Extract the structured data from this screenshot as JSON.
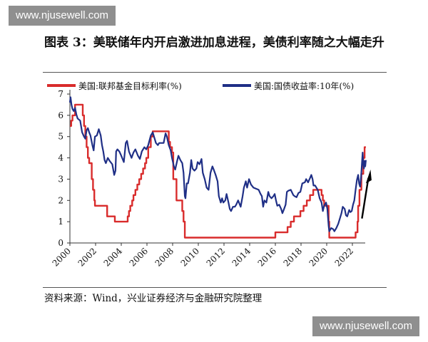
{
  "watermark": {
    "text": "www.njusewell.com"
  },
  "figure": {
    "title": "图表 3：美联储年内开启激进加息进程，美债利率随之大幅走升",
    "source": "资料来源：Wind，兴业证券经济与金融研究院整理"
  },
  "colors": {
    "fed_rate": "#d92c2c",
    "treasury_10y": "#1f2f86",
    "axis": "#333333",
    "arrow": "#000000"
  },
  "chart_data": {
    "type": "line",
    "title": "",
    "xlabel": "",
    "ylabel": "",
    "xlim": [
      2000,
      2023
    ],
    "ylim": [
      0,
      7
    ],
    "yticks": [
      0,
      1,
      2,
      3,
      4,
      5,
      6,
      7
    ],
    "xticks": [
      "2000",
      "2002",
      "2004",
      "2006",
      "2008",
      "2010",
      "2012",
      "2014",
      "2016",
      "2018",
      "2020",
      "2022"
    ],
    "grid": false,
    "legend_position": "top",
    "annotations": [
      {
        "type": "arrow",
        "direction": "up",
        "near_x": 2022.8
      }
    ],
    "series": [
      {
        "name": "美国:联邦基金目标利率(%)",
        "color": "#d92c2c",
        "style": "step",
        "points": [
          [
            2000.0,
            5.5
          ],
          [
            2000.1,
            5.75
          ],
          [
            2000.2,
            6.0
          ],
          [
            2000.4,
            6.5
          ],
          [
            2000.95,
            6.5
          ],
          [
            2001.0,
            6.0
          ],
          [
            2001.1,
            5.5
          ],
          [
            2001.2,
            5.0
          ],
          [
            2001.3,
            4.5
          ],
          [
            2001.4,
            4.0
          ],
          [
            2001.5,
            3.75
          ],
          [
            2001.7,
            3.0
          ],
          [
            2001.8,
            2.5
          ],
          [
            2001.9,
            2.0
          ],
          [
            2001.95,
            1.75
          ],
          [
            2002.85,
            1.75
          ],
          [
            2002.9,
            1.25
          ],
          [
            2003.45,
            1.25
          ],
          [
            2003.5,
            1.0
          ],
          [
            2004.45,
            1.0
          ],
          [
            2004.5,
            1.25
          ],
          [
            2004.6,
            1.5
          ],
          [
            2004.7,
            1.75
          ],
          [
            2004.85,
            2.0
          ],
          [
            2004.95,
            2.25
          ],
          [
            2005.1,
            2.5
          ],
          [
            2005.25,
            2.75
          ],
          [
            2005.4,
            3.0
          ],
          [
            2005.55,
            3.25
          ],
          [
            2005.7,
            3.5
          ],
          [
            2005.85,
            3.75
          ],
          [
            2005.95,
            4.0
          ],
          [
            2006.1,
            4.5
          ],
          [
            2006.3,
            5.0
          ],
          [
            2006.45,
            5.25
          ],
          [
            2007.65,
            5.25
          ],
          [
            2007.7,
            4.75
          ],
          [
            2007.8,
            4.5
          ],
          [
            2007.95,
            4.25
          ],
          [
            2008.05,
            3.0
          ],
          [
            2008.3,
            2.0
          ],
          [
            2008.75,
            1.5
          ],
          [
            2008.85,
            1.0
          ],
          [
            2008.95,
            0.25
          ],
          [
            2015.95,
            0.25
          ],
          [
            2016.0,
            0.5
          ],
          [
            2016.95,
            0.75
          ],
          [
            2017.2,
            1.0
          ],
          [
            2017.45,
            1.25
          ],
          [
            2017.95,
            1.5
          ],
          [
            2018.2,
            1.75
          ],
          [
            2018.45,
            2.0
          ],
          [
            2018.7,
            2.25
          ],
          [
            2018.95,
            2.5
          ],
          [
            2019.55,
            2.5
          ],
          [
            2019.6,
            2.25
          ],
          [
            2019.7,
            2.0
          ],
          [
            2019.8,
            1.75
          ],
          [
            2020.15,
            1.0
          ],
          [
            2020.2,
            0.25
          ],
          [
            2022.2,
            0.25
          ],
          [
            2022.25,
            0.5
          ],
          [
            2022.4,
            1.0
          ],
          [
            2022.45,
            1.75
          ],
          [
            2022.55,
            2.5
          ],
          [
            2022.7,
            3.25
          ],
          [
            2022.85,
            4.0
          ],
          [
            2022.95,
            4.5
          ],
          [
            2023.05,
            4.5
          ]
        ]
      },
      {
        "name": "美国:国债收益率:10年(%)",
        "color": "#1f2f86",
        "style": "line",
        "points": [
          [
            2000.0,
            6.6
          ],
          [
            2000.05,
            6.85
          ],
          [
            2000.12,
            6.5
          ],
          [
            2000.2,
            6.3
          ],
          [
            2000.3,
            6.2
          ],
          [
            2000.4,
            6.35
          ],
          [
            2000.5,
            6.05
          ],
          [
            2000.6,
            5.85
          ],
          [
            2000.7,
            5.8
          ],
          [
            2000.8,
            5.75
          ],
          [
            2000.95,
            5.2
          ],
          [
            2001.1,
            5.0
          ],
          [
            2001.2,
            4.9
          ],
          [
            2001.3,
            5.3
          ],
          [
            2001.4,
            5.4
          ],
          [
            2001.5,
            5.2
          ],
          [
            2001.6,
            5.05
          ],
          [
            2001.75,
            4.6
          ],
          [
            2001.85,
            4.35
          ],
          [
            2001.95,
            5.0
          ],
          [
            2002.1,
            5.05
          ],
          [
            2002.25,
            5.35
          ],
          [
            2002.4,
            5.05
          ],
          [
            2002.5,
            4.6
          ],
          [
            2002.6,
            4.3
          ],
          [
            2002.7,
            3.9
          ],
          [
            2002.8,
            3.75
          ],
          [
            2002.95,
            4.0
          ],
          [
            2003.1,
            3.85
          ],
          [
            2003.3,
            3.7
          ],
          [
            2003.45,
            3.2
          ],
          [
            2003.55,
            3.4
          ],
          [
            2003.6,
            4.3
          ],
          [
            2003.7,
            4.4
          ],
          [
            2003.85,
            4.3
          ],
          [
            2004.0,
            4.1
          ],
          [
            2004.2,
            3.8
          ],
          [
            2004.35,
            4.7
          ],
          [
            2004.45,
            4.8
          ],
          [
            2004.6,
            4.3
          ],
          [
            2004.8,
            4.0
          ],
          [
            2004.95,
            4.25
          ],
          [
            2005.1,
            4.4
          ],
          [
            2005.3,
            4.1
          ],
          [
            2005.45,
            3.95
          ],
          [
            2005.6,
            4.3
          ],
          [
            2005.8,
            4.5
          ],
          [
            2005.95,
            4.4
          ],
          [
            2006.1,
            4.6
          ],
          [
            2006.3,
            5.05
          ],
          [
            2006.45,
            5.2
          ],
          [
            2006.55,
            5.0
          ],
          [
            2006.7,
            4.7
          ],
          [
            2006.85,
            4.6
          ],
          [
            2006.95,
            4.7
          ],
          [
            2007.1,
            4.7
          ],
          [
            2007.3,
            4.7
          ],
          [
            2007.45,
            5.15
          ],
          [
            2007.55,
            5.0
          ],
          [
            2007.7,
            4.6
          ],
          [
            2007.85,
            4.35
          ],
          [
            2007.95,
            4.0
          ],
          [
            2008.1,
            3.6
          ],
          [
            2008.2,
            3.45
          ],
          [
            2008.35,
            3.85
          ],
          [
            2008.45,
            4.1
          ],
          [
            2008.6,
            3.9
          ],
          [
            2008.75,
            3.75
          ],
          [
            2008.85,
            3.3
          ],
          [
            2008.95,
            2.2
          ],
          [
            2009.0,
            2.1
          ],
          [
            2009.1,
            2.8
          ],
          [
            2009.2,
            2.8
          ],
          [
            2009.35,
            3.3
          ],
          [
            2009.45,
            3.9
          ],
          [
            2009.55,
            3.5
          ],
          [
            2009.7,
            3.4
          ],
          [
            2009.85,
            3.5
          ],
          [
            2009.95,
            3.8
          ],
          [
            2010.1,
            3.7
          ],
          [
            2010.25,
            3.95
          ],
          [
            2010.35,
            3.3
          ],
          [
            2010.5,
            3.0
          ],
          [
            2010.65,
            2.6
          ],
          [
            2010.8,
            2.5
          ],
          [
            2010.95,
            3.3
          ],
          [
            2011.1,
            3.6
          ],
          [
            2011.2,
            3.45
          ],
          [
            2011.35,
            3.2
          ],
          [
            2011.5,
            2.9
          ],
          [
            2011.6,
            2.2
          ],
          [
            2011.75,
            1.9
          ],
          [
            2011.85,
            2.1
          ],
          [
            2011.95,
            1.9
          ],
          [
            2012.1,
            2.0
          ],
          [
            2012.2,
            2.3
          ],
          [
            2012.35,
            1.9
          ],
          [
            2012.45,
            1.6
          ],
          [
            2012.55,
            1.5
          ],
          [
            2012.7,
            1.7
          ],
          [
            2012.85,
            1.7
          ],
          [
            2012.95,
            1.8
          ],
          [
            2013.1,
            2.0
          ],
          [
            2013.3,
            1.7
          ],
          [
            2013.45,
            2.2
          ],
          [
            2013.55,
            2.6
          ],
          [
            2013.7,
            2.9
          ],
          [
            2013.8,
            2.6
          ],
          [
            2013.95,
            3.0
          ],
          [
            2014.1,
            2.75
          ],
          [
            2014.3,
            2.6
          ],
          [
            2014.5,
            2.55
          ],
          [
            2014.7,
            2.5
          ],
          [
            2014.85,
            2.3
          ],
          [
            2014.95,
            2.2
          ],
          [
            2015.05,
            1.7
          ],
          [
            2015.15,
            2.0
          ],
          [
            2015.3,
            1.9
          ],
          [
            2015.45,
            2.4
          ],
          [
            2015.55,
            2.2
          ],
          [
            2015.7,
            2.1
          ],
          [
            2015.85,
            2.2
          ],
          [
            2015.95,
            2.3
          ],
          [
            2016.05,
            2.0
          ],
          [
            2016.15,
            1.75
          ],
          [
            2016.3,
            1.8
          ],
          [
            2016.45,
            1.6
          ],
          [
            2016.55,
            1.4
          ],
          [
            2016.65,
            1.55
          ],
          [
            2016.8,
            1.8
          ],
          [
            2016.9,
            2.4
          ],
          [
            2017.0,
            2.45
          ],
          [
            2017.2,
            2.5
          ],
          [
            2017.4,
            2.25
          ],
          [
            2017.5,
            2.2
          ],
          [
            2017.65,
            2.15
          ],
          [
            2017.8,
            2.35
          ],
          [
            2017.95,
            2.4
          ],
          [
            2018.1,
            2.8
          ],
          [
            2018.3,
            2.85
          ],
          [
            2018.4,
            3.0
          ],
          [
            2018.55,
            2.85
          ],
          [
            2018.7,
            3.05
          ],
          [
            2018.8,
            3.2
          ],
          [
            2018.9,
            3.0
          ],
          [
            2018.97,
            2.7
          ],
          [
            2019.1,
            2.7
          ],
          [
            2019.3,
            2.5
          ],
          [
            2019.45,
            2.1
          ],
          [
            2019.6,
            1.9
          ],
          [
            2019.7,
            1.5
          ],
          [
            2019.8,
            1.75
          ],
          [
            2019.95,
            1.9
          ],
          [
            2020.05,
            1.6
          ],
          [
            2020.15,
            0.8
          ],
          [
            2020.2,
            0.55
          ],
          [
            2020.35,
            0.7
          ],
          [
            2020.5,
            0.65
          ],
          [
            2020.6,
            0.55
          ],
          [
            2020.75,
            0.7
          ],
          [
            2020.9,
            0.9
          ],
          [
            2021.0,
            1.1
          ],
          [
            2021.15,
            1.4
          ],
          [
            2021.25,
            1.7
          ],
          [
            2021.4,
            1.6
          ],
          [
            2021.5,
            1.3
          ],
          [
            2021.6,
            1.25
          ],
          [
            2021.75,
            1.55
          ],
          [
            2021.85,
            1.45
          ],
          [
            2021.95,
            1.5
          ],
          [
            2022.05,
            1.8
          ],
          [
            2022.15,
            2.0
          ],
          [
            2022.25,
            2.5
          ],
          [
            2022.35,
            2.95
          ],
          [
            2022.45,
            3.2
          ],
          [
            2022.52,
            2.8
          ],
          [
            2022.6,
            2.65
          ],
          [
            2022.68,
            3.1
          ],
          [
            2022.75,
            3.8
          ],
          [
            2022.8,
            4.25
          ],
          [
            2022.85,
            3.7
          ],
          [
            2022.9,
            3.5
          ],
          [
            2022.95,
            3.85
          ],
          [
            2023.0,
            3.6
          ],
          [
            2023.05,
            3.9
          ]
        ]
      }
    ]
  }
}
